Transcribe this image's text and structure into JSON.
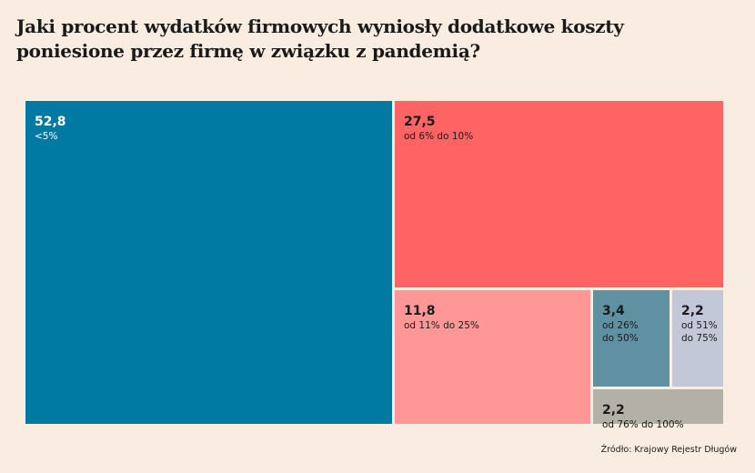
{
  "title_lines": [
    "Jaki procent wydatków firmowych wyniosły dodatkowe koszty",
    "poniesione przez firmę w związku z pandemią?"
  ],
  "source": "Źródło: Krajowy Rejestr Długów",
  "chart_data": {
    "type": "treemap",
    "title": "Jaki procent wydatków firmowych wyniosły dodatkowe koszty poniesione przez firmę w związku z pandemią?",
    "unit": "%",
    "items": [
      {
        "value": 52.8,
        "value_label": "52,8",
        "category_lines": [
          "<5%"
        ],
        "color": "#0079a3",
        "text_color": "#ffffff"
      },
      {
        "value": 27.5,
        "value_label": "27,5",
        "category_lines": [
          "od 6% do 10%"
        ],
        "color": "#ff6464",
        "text_color": "#1a1a1a"
      },
      {
        "value": 11.8,
        "value_label": "11,8",
        "category_lines": [
          "od 11% do 25%"
        ],
        "color": "#ff9797",
        "text_color": "#1a1a1a"
      },
      {
        "value": 3.4,
        "value_label": "3,4",
        "category_lines": [
          "od 26%",
          "do 50%"
        ],
        "color": "#5f91a3",
        "text_color": "#1a1a1a"
      },
      {
        "value": 2.2,
        "value_label": "2,2",
        "category_lines": [
          "od 51%",
          "do 75%"
        ],
        "color": "#c2c8d8",
        "text_color": "#1a1a1a"
      },
      {
        "value": 2.2,
        "value_label": "2,2",
        "category_lines": [
          "od 76% do 100%"
        ],
        "color": "#b3b1a7",
        "text_color": "#1a1a1a"
      }
    ]
  }
}
